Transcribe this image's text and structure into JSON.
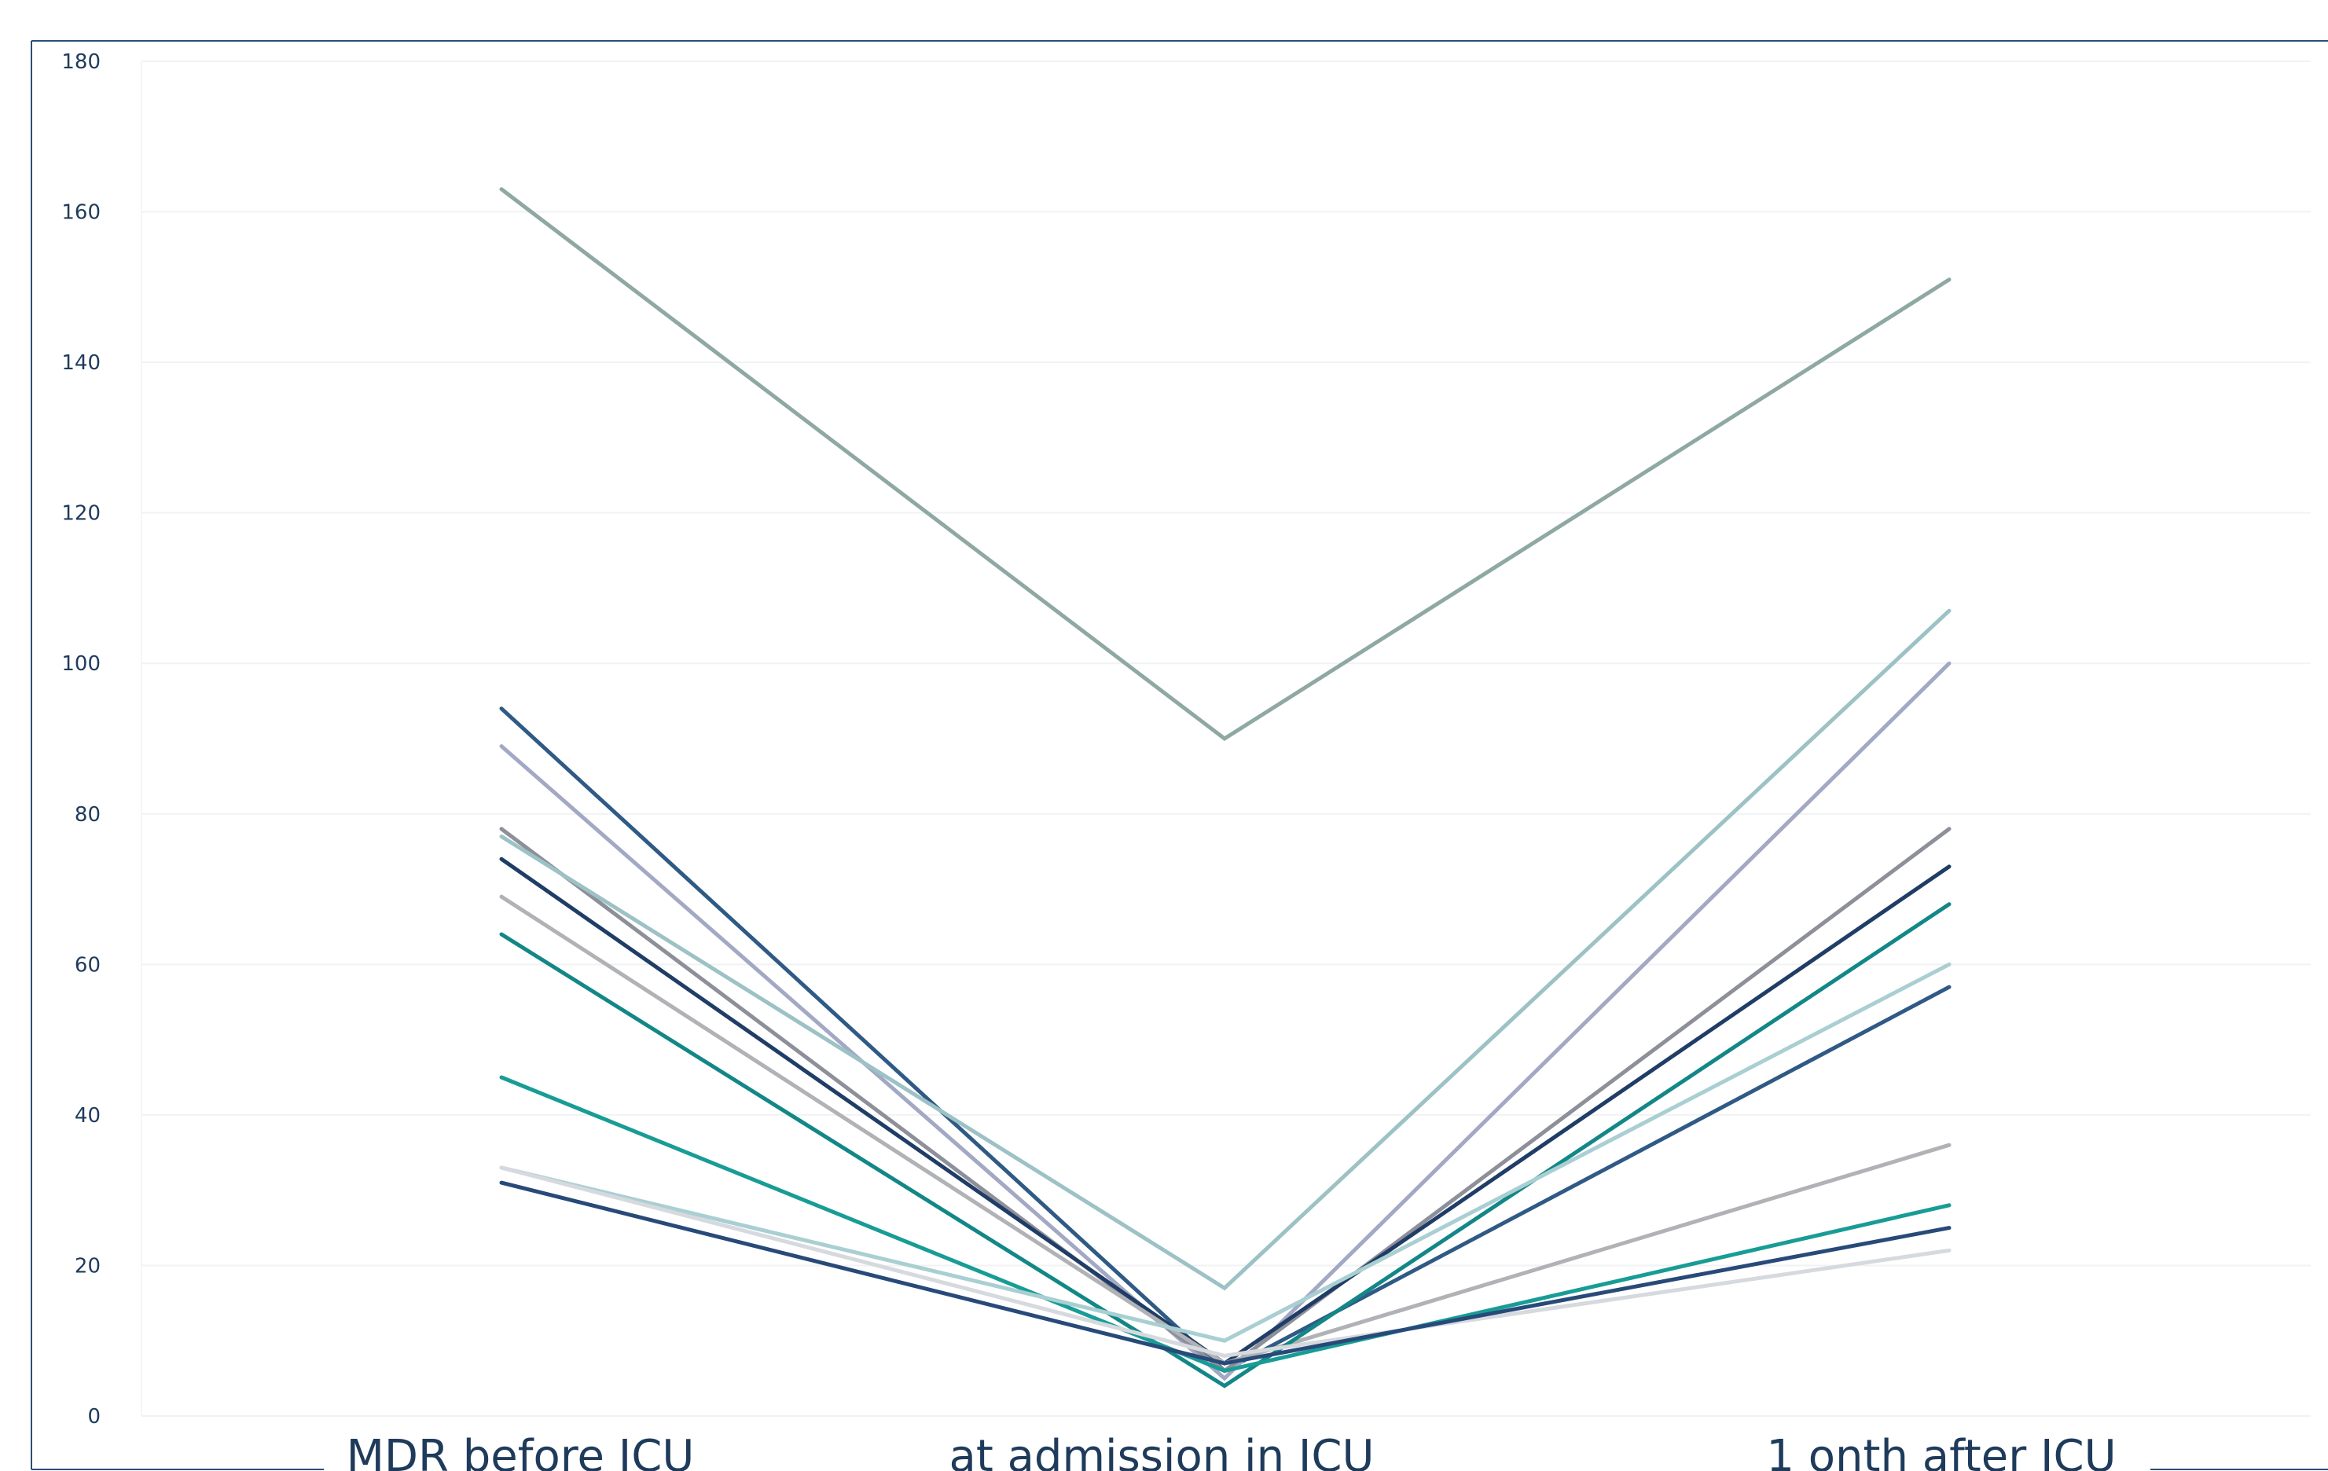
{
  "chart_data": {
    "type": "line",
    "title": "",
    "xlabel": "",
    "ylabel": "",
    "categories": [
      "MDR before ICU",
      "at admission in ICU",
      "1 onth after ICU"
    ],
    "ylim": [
      0,
      180
    ],
    "yticks": [
      0,
      20,
      40,
      60,
      80,
      100,
      120,
      140,
      160,
      180
    ],
    "grid": true,
    "legend": "none",
    "series": [
      {
        "values": [
          163,
          90,
          151
        ],
        "color": "#8fa8a4"
      },
      {
        "values": [
          94,
          6,
          57
        ],
        "color": "#2f5a85"
      },
      {
        "values": [
          89,
          5,
          100
        ],
        "color": "#a3a8c4"
      },
      {
        "values": [
          78,
          6,
          78
        ],
        "color": "#8d8f99"
      },
      {
        "values": [
          77,
          17,
          107
        ],
        "color": "#9cc2c6"
      },
      {
        "values": [
          74,
          7,
          73
        ],
        "color": "#1f3d66"
      },
      {
        "values": [
          69,
          7,
          36
        ],
        "color": "#b0b2b6"
      },
      {
        "values": [
          64,
          4,
          68
        ],
        "color": "#138787"
      },
      {
        "values": [
          45,
          6,
          28
        ],
        "color": "#189c96"
      },
      {
        "values": [
          33,
          10,
          60
        ],
        "color": "#a9cfd2"
      },
      {
        "values": [
          33,
          8,
          22
        ],
        "color": "#d6d9de"
      },
      {
        "values": [
          31,
          7,
          25
        ],
        "color": "#274a78"
      }
    ]
  }
}
